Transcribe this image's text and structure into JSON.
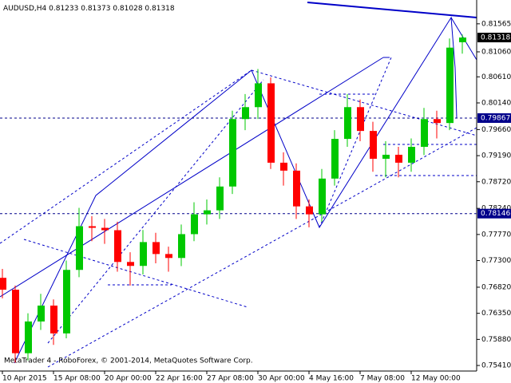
{
  "chart_data": {
    "type": "candlestick",
    "symbol": "AUDUSD,H4",
    "footer": "MetaTrader 4 - RoboForex, © 2001-2014, MetaQuotes Software Corp.",
    "categories": [
      "10 Apr 2015",
      null,
      null,
      null,
      "15 Apr 08:00",
      null,
      null,
      null,
      "20 Apr 00:00",
      null,
      null,
      null,
      "22 Apr 16:00",
      null,
      null,
      null,
      "27 Apr 08:00",
      null,
      null,
      null,
      "30 Apr 00:00",
      null,
      null,
      null,
      "4 May 16:00",
      null,
      null,
      null,
      "7 May 08:00",
      null,
      null,
      null,
      "12 May 00:00",
      null,
      null,
      null,
      null
    ],
    "open": [
      0.76989,
      0.76775,
      0.75631,
      0.76203,
      0.76489,
      0.75988,
      0.77132,
      0.77919,
      0.7789,
      0.77847,
      0.77275,
      0.77204,
      0.77633,
      0.77418,
      0.77347,
      0.77776,
      0.78133,
      0.78205,
      0.78634,
      0.79849,
      0.80064,
      0.80493,
      0.79063,
      0.7892,
      0.78276,
      0.78133,
      0.78777,
      0.79492,
      0.80064,
      0.79635,
      0.79134,
      0.79206,
      0.79063,
      0.79349,
      0.79849,
      0.79778,
      0.81233
    ],
    "high": [
      0.7715,
      0.7685,
      0.7635,
      0.767,
      0.766,
      0.773,
      0.7825,
      0.781,
      0.7805,
      0.78,
      0.7745,
      0.7785,
      0.778,
      0.7755,
      0.7795,
      0.7835,
      0.784,
      0.788,
      0.8,
      0.803,
      0.8075,
      0.806,
      0.7925,
      0.7905,
      0.784,
      0.7895,
      0.7965,
      0.803,
      0.802,
      0.798,
      0.7945,
      0.7935,
      0.795,
      0.8005,
      0.8,
      0.813,
      0.81373
    ],
    "low": [
      0.7662,
      0.7546,
      0.755,
      0.7605,
      0.7578,
      0.759,
      0.77,
      0.7765,
      0.776,
      0.771,
      0.7685,
      0.7705,
      0.7725,
      0.771,
      0.772,
      0.7765,
      0.7795,
      0.7805,
      0.785,
      0.7965,
      0.7985,
      0.7895,
      0.7865,
      0.7805,
      0.779,
      0.78,
      0.7865,
      0.7935,
      0.7945,
      0.789,
      0.788,
      0.788,
      0.789,
      0.792,
      0.795,
      0.7965,
      0.81028
    ],
    "close": [
      0.76775,
      0.75631,
      0.76203,
      0.76489,
      0.75988,
      0.77132,
      0.77919,
      0.7789,
      0.77847,
      0.77275,
      0.77204,
      0.77633,
      0.77418,
      0.77347,
      0.77776,
      0.78133,
      0.78205,
      0.78634,
      0.79849,
      0.80064,
      0.80493,
      0.79063,
      0.7892,
      0.78276,
      0.78133,
      0.78777,
      0.79492,
      0.80064,
      0.79635,
      0.79134,
      0.79206,
      0.79063,
      0.79349,
      0.79849,
      0.79778,
      0.81136,
      0.81318
    ],
    "up_color": "#00c800",
    "down_color": "#ff0000",
    "ylim": [
      0.7531,
      0.81994
    ],
    "yticks": [
      0.81565,
      {
        "value": 0.8106,
        "label": "0.81060"
      },
      {
        "value": 0.8061,
        "label": "0.80610"
      },
      {
        "value": 0.8014,
        "label": "0.80140"
      },
      {
        "value": 0.7966,
        "label": "0.79660"
      },
      {
        "value": 0.7919,
        "label": "0.79190"
      },
      {
        "value": 0.7872,
        "label": "0.78720"
      },
      {
        "value": 0.7824,
        "label": "0.78240"
      },
      {
        "value": 0.7777,
        "label": "0.77770"
      },
      {
        "value": 0.773,
        "label": "0.77300"
      },
      {
        "value": 0.7682,
        "label": "0.76820"
      },
      {
        "value": 0.7635,
        "label": "0.76350"
      },
      {
        "value": 0.7588,
        "label": "0.75880"
      },
      {
        "value": 0.7541,
        "label": "0.75410"
      }
    ],
    "levels": [
      0.79867,
      0.78146
    ],
    "level_color": "#00008b"
  }
}
